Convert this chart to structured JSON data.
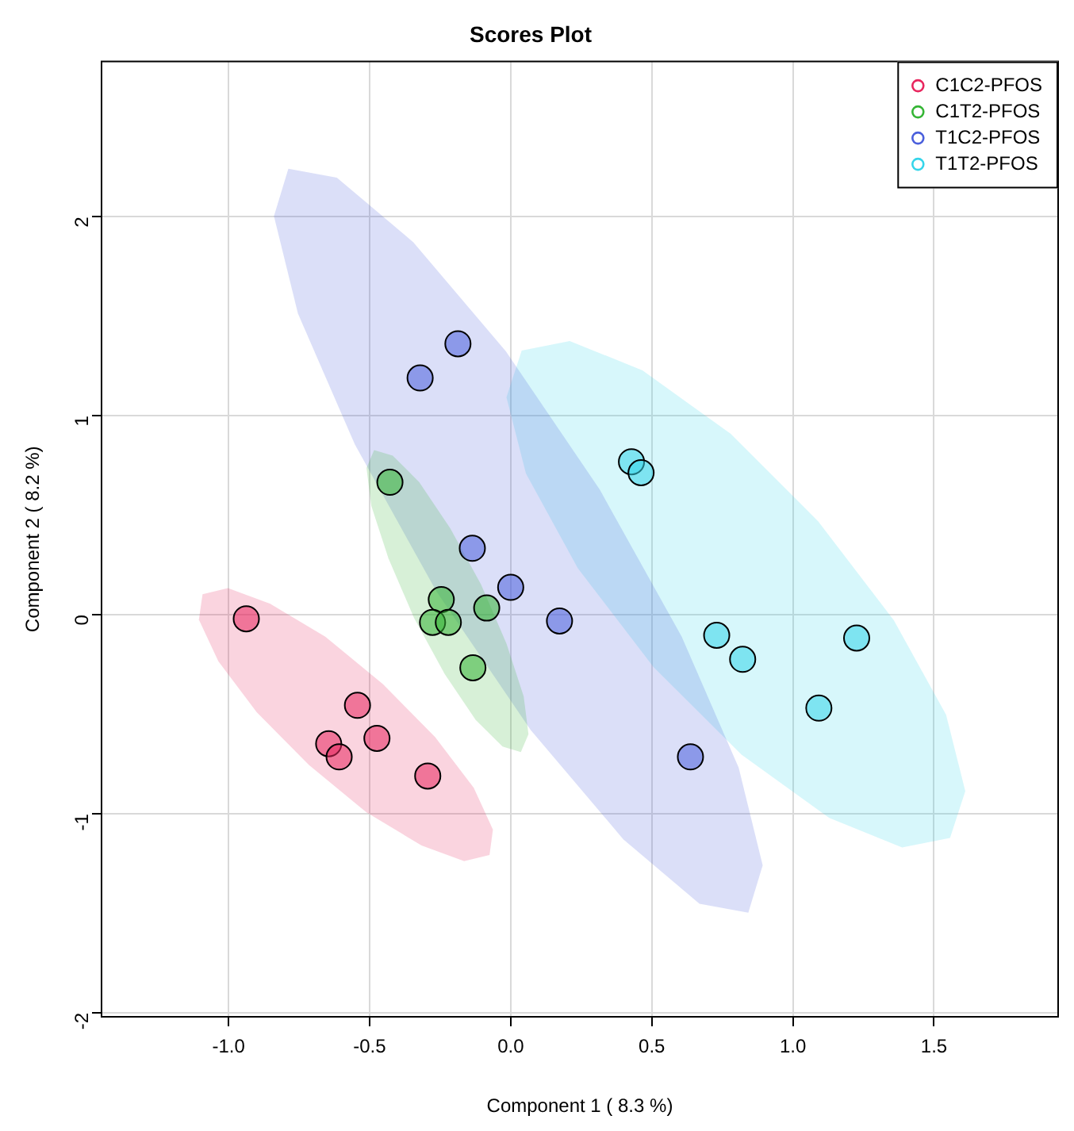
{
  "chart_data": {
    "type": "scatter",
    "title": "Scores Plot",
    "xlabel": "Component 1 ( 8.3 %)",
    "ylabel": "Component 2 ( 8.2 %)",
    "xlim": [
      -1.45,
      1.94
    ],
    "ylim": [
      -2.02,
      2.78
    ],
    "xticks": [
      {
        "value": -1,
        "label": "-1.0"
      },
      -0.5,
      {
        "value": 0,
        "label": "0.0"
      },
      0.5,
      {
        "value": 1,
        "label": "1.0"
      },
      1.5
    ],
    "yticks": [
      -2,
      -1,
      0,
      1,
      2
    ],
    "grid": true,
    "legend": "top right",
    "series": [
      {
        "type": "area",
        "color": "#e8265e",
        "x": [
          -0.075,
          -0.165,
          -0.316,
          -0.511,
          -0.715,
          -0.9,
          -1.036,
          -1.105,
          -1.092,
          -1.002,
          -0.852,
          -0.657,
          -0.453,
          -0.268,
          -0.131,
          -0.063
        ],
        "values": [
          -1.207,
          -1.238,
          -1.159,
          -0.993,
          -0.755,
          -0.49,
          -0.234,
          -0.024,
          0.103,
          0.134,
          0.055,
          -0.11,
          -0.348,
          -0.614,
          -0.869,
          -1.079
        ]
      },
      {
        "type": "area",
        "color": "#35b535",
        "x": [
          0.036,
          -0.029,
          -0.124,
          -0.234,
          -0.343,
          -0.433,
          -0.494,
          -0.511,
          -0.484,
          -0.418,
          -0.324,
          -0.214,
          -0.105,
          -0.015,
          0.046,
          0.063
        ],
        "values": [
          -0.69,
          -0.662,
          -0.528,
          -0.297,
          -0.014,
          0.283,
          0.548,
          0.738,
          0.828,
          0.8,
          0.666,
          0.434,
          0.152,
          -0.145,
          -0.41,
          -0.6
        ]
      },
      {
        "type": "area",
        "color": "#4a5fdc",
        "x": [
          0.842,
          0.669,
          0.399,
          0.071,
          -0.263,
          -0.552,
          -0.754,
          -0.839,
          -0.788,
          -0.616,
          -0.345,
          -0.017,
          0.316,
          0.606,
          0.808,
          0.893
        ],
        "values": [
          -1.497,
          -1.452,
          -1.128,
          -0.579,
          0.117,
          0.855,
          1.514,
          2.003,
          2.241,
          2.197,
          1.872,
          1.324,
          0.628,
          -0.11,
          -0.769,
          -1.259
        ]
      },
      {
        "type": "area",
        "color": "#35d5ea",
        "x": [
          1.557,
          1.387,
          1.129,
          0.818,
          0.506,
          0.238,
          0.054,
          -0.015,
          0.039,
          0.209,
          0.467,
          0.779,
          1.09,
          1.358,
          1.543,
          1.611
        ],
        "values": [
          -1.121,
          -1.169,
          -1.021,
          -0.703,
          -0.262,
          0.234,
          0.71,
          1.093,
          1.328,
          1.376,
          1.228,
          0.91,
          0.469,
          -0.028,
          -0.503,
          -0.886
        ]
      },
      {
        "marker": "circle",
        "name": "C1C2-PFOS",
        "color": "#e8265e",
        "x": [
          -0.937,
          -0.543,
          -0.645,
          -0.608,
          -0.474,
          -0.294
        ],
        "values": [
          -0.02,
          -0.455,
          -0.648,
          -0.714,
          -0.621,
          -0.81
        ]
      },
      {
        "marker": "circle",
        "name": "C1T2-PFOS",
        "color": "#35b535",
        "x": [
          -0.428,
          -0.246,
          -0.277,
          -0.221,
          -0.085,
          -0.134
        ],
        "values": [
          0.666,
          0.076,
          -0.038,
          -0.038,
          0.034,
          -0.266
        ]
      },
      {
        "marker": "circle",
        "name": "T1C2-PFOS",
        "color": "#4a5fdc",
        "x": [
          -0.187,
          -0.321,
          -0.136,
          0.0,
          0.173,
          0.637
        ],
        "values": [
          1.362,
          1.19,
          0.334,
          0.138,
          -0.031,
          -0.714
        ]
      },
      {
        "marker": "circle",
        "name": "T1T2-PFOS",
        "color": "#35d5ea",
        "x": [
          0.428,
          0.462,
          0.73,
          0.822,
          1.226,
          1.092
        ],
        "values": [
          0.769,
          0.714,
          -0.103,
          -0.224,
          -0.117,
          -0.469
        ]
      }
    ]
  }
}
